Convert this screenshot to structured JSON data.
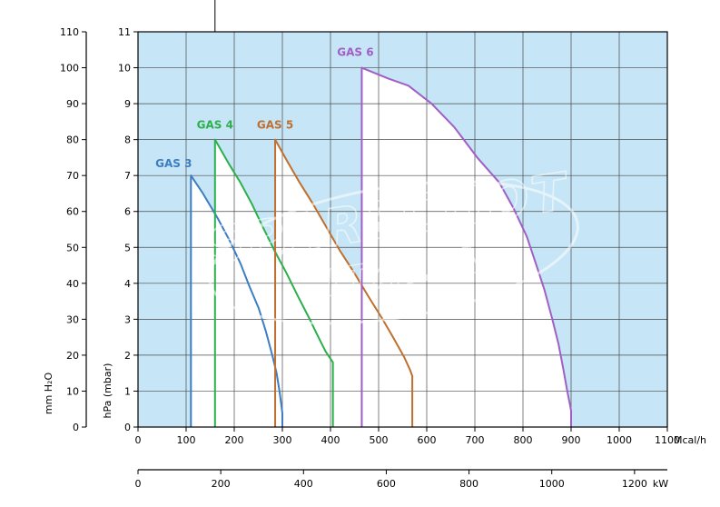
{
  "page": {
    "background": "#ffffff"
  },
  "watermark": {
    "line1": "SPARECHOT",
    "line2": "ITALIA",
    "color": "#ffffff"
  },
  "chart_data": {
    "type": "line",
    "title": "",
    "plot_bg": "#c6e5f6",
    "fill_color": "#ffffff",
    "grid_color": "#4a4a4a",
    "axis_color": "#000000",
    "grid": true,
    "x_axis": {
      "label": "Mcal/h",
      "min": 0,
      "max": 1100,
      "ticks": [
        0,
        100,
        200,
        300,
        400,
        500,
        600,
        700,
        800,
        900,
        1000,
        1100
      ]
    },
    "x_axis_secondary": {
      "label": "kW",
      "min": 0,
      "max": 1200,
      "ticks": [
        0,
        200,
        400,
        600,
        800,
        1000,
        1200
      ],
      "kw_per_mcalh": 1.163
    },
    "y_axis": {
      "label": "hPa (mbar)",
      "min": 0,
      "max": 11,
      "ticks": [
        0,
        1,
        2,
        3,
        4,
        5,
        6,
        7,
        8,
        9,
        10,
        11
      ]
    },
    "y_axis_secondary": {
      "label": "mm H₂O",
      "min": 0,
      "max": 110,
      "ticks": [
        0,
        10,
        20,
        30,
        40,
        50,
        60,
        70,
        80,
        90,
        100,
        110
      ]
    },
    "top_marker_x": 160,
    "series": [
      {
        "name": "GAS 3",
        "color": "#3d7dc2",
        "label_offset": [
          -19,
          -9
        ],
        "max_pressure_hpa": 7,
        "min_output_mcalh": 110,
        "max_output_mcalh": 300,
        "points": [
          [
            110,
            0
          ],
          [
            110,
            7
          ],
          [
            135,
            6.5
          ],
          [
            166,
            5.8
          ],
          [
            190,
            5.2
          ],
          [
            213,
            4.55
          ],
          [
            232,
            3.9
          ],
          [
            251,
            3.3
          ],
          [
            266,
            2.65
          ],
          [
            279,
            2.0
          ],
          [
            288,
            1.5
          ],
          [
            294,
            1.0
          ],
          [
            298,
            0.6
          ],
          [
            300,
            0.38
          ],
          [
            300,
            0
          ]
        ]
      },
      {
        "name": "GAS 4",
        "color": "#2bb04c",
        "label_offset": [
          0,
          -12
        ],
        "max_pressure_hpa": 8,
        "min_output_mcalh": 160,
        "max_output_mcalh": 405,
        "points": [
          [
            160,
            0
          ],
          [
            160,
            8
          ],
          [
            190,
            7.3
          ],
          [
            213,
            6.8
          ],
          [
            237,
            6.2
          ],
          [
            260,
            5.55
          ],
          [
            284,
            4.9
          ],
          [
            308,
            4.3
          ],
          [
            332,
            3.65
          ],
          [
            355,
            3.05
          ],
          [
            375,
            2.5
          ],
          [
            390,
            2.1
          ],
          [
            400,
            1.9
          ],
          [
            405,
            1.8
          ],
          [
            405,
            0
          ]
        ]
      },
      {
        "name": "GAS 5",
        "color": "#c06f2e",
        "label_offset": [
          0,
          -12
        ],
        "max_pressure_hpa": 8,
        "min_output_mcalh": 285,
        "max_output_mcalh": 570,
        "points": [
          [
            285,
            0
          ],
          [
            285,
            8
          ],
          [
            310,
            7.4
          ],
          [
            336,
            6.8
          ],
          [
            364,
            6.2
          ],
          [
            392,
            5.55
          ],
          [
            420,
            4.9
          ],
          [
            449,
            4.3
          ],
          [
            478,
            3.65
          ],
          [
            506,
            3.05
          ],
          [
            530,
            2.5
          ],
          [
            553,
            1.95
          ],
          [
            565,
            1.6
          ],
          [
            570,
            1.42
          ],
          [
            570,
            0
          ]
        ]
      },
      {
        "name": "GAS 6",
        "color": "#a05fc5",
        "label_offset": [
          -7,
          -13
        ],
        "max_pressure_hpa": 10,
        "min_output_mcalh": 465,
        "max_output_mcalh": 900,
        "points": [
          [
            465,
            0
          ],
          [
            465,
            10
          ],
          [
            520,
            9.7
          ],
          [
            562,
            9.5
          ],
          [
            610,
            9.0
          ],
          [
            657,
            8.35
          ],
          [
            705,
            7.5
          ],
          [
            751,
            6.8
          ],
          [
            780,
            6.1
          ],
          [
            808,
            5.3
          ],
          [
            828,
            4.5
          ],
          [
            845,
            3.8
          ],
          [
            861,
            3.0
          ],
          [
            874,
            2.3
          ],
          [
            884,
            1.6
          ],
          [
            892,
            1.0
          ],
          [
            898,
            0.6
          ],
          [
            900,
            0.45
          ],
          [
            900,
            0
          ]
        ]
      }
    ]
  }
}
